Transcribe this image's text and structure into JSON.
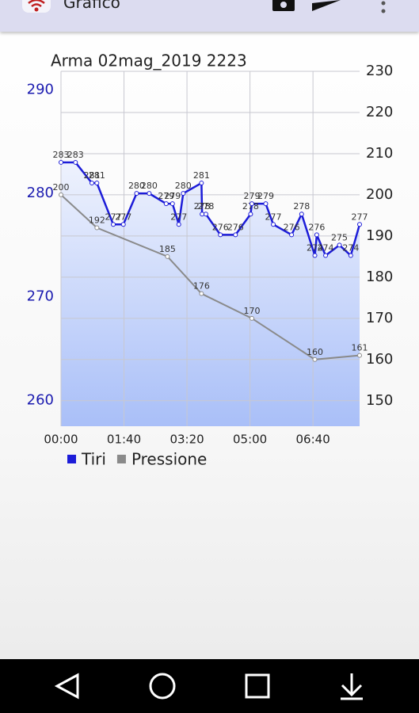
{
  "app_bar": {
    "title": "Grafico"
  },
  "chart_data": {
    "type": "line",
    "title": "Arma  02mag_2019 2223",
    "xlim": [
      0,
      474
    ],
    "xticks": [
      {
        "value": 0,
        "label": "00:00"
      },
      {
        "value": 100,
        "label": "01:40"
      },
      {
        "value": 200,
        "label": "03:20"
      },
      {
        "value": 300,
        "label": "05:00"
      },
      {
        "value": 400,
        "label": "06:40"
      }
    ],
    "ylim": [
      257.5,
      291.8
    ],
    "yticks": [
      260,
      270,
      280,
      290
    ],
    "y2lim": [
      143.8,
      230
    ],
    "y2ticks": [
      150,
      160,
      170,
      180,
      190,
      200,
      210,
      220,
      230
    ],
    "grid": true,
    "legend": "bottom-left",
    "series": [
      {
        "name": "Tiri",
        "color": "#1c1cd8",
        "x": [
          0,
          23,
          49,
          57,
          83,
          99,
          120,
          140,
          167,
          177,
          187,
          194,
          223,
          224,
          230,
          253,
          277,
          301,
          303,
          325,
          337,
          366,
          382,
          403,
          406,
          420,
          442,
          460,
          474
        ],
        "values": [
          283,
          283,
          281,
          281,
          277,
          277,
          280,
          280,
          279,
          279,
          277,
          280,
          281,
          278,
          278,
          276,
          276,
          278,
          279,
          279,
          277,
          276,
          278,
          274,
          276,
          274,
          275,
          274,
          277
        ]
      },
      {
        "name": "Pressione",
        "color": "#8a8a8a",
        "axis": "y2",
        "x": [
          0,
          57,
          169,
          223,
          303,
          403,
          474
        ],
        "values": [
          200,
          192,
          185,
          176,
          170,
          160,
          161
        ]
      }
    ]
  }
}
